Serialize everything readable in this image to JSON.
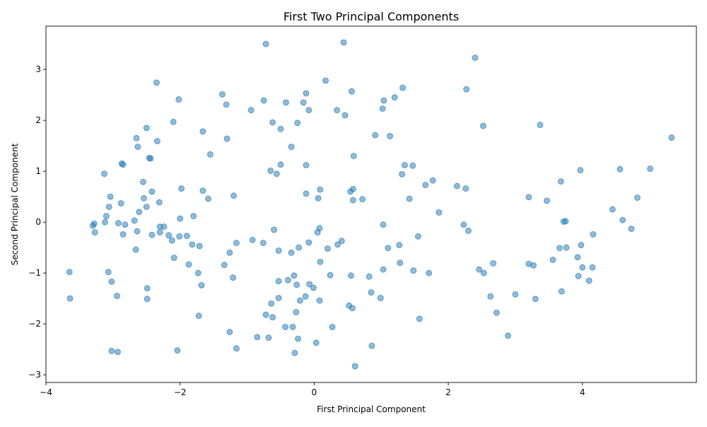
{
  "chart_data": {
    "type": "scatter",
    "title": "First Two Principal Components",
    "xlabel": "First Principal Component",
    "ylabel": "Second Principal Component",
    "xlim": [
      -4.0,
      5.7
    ],
    "ylim": [
      -3.15,
      3.85
    ],
    "xticks": [
      -4,
      -2,
      0,
      2,
      4
    ],
    "yticks": [
      -3,
      -2,
      -1,
      0,
      1,
      2,
      3
    ],
    "xtick_labels": [
      "−4",
      "−2",
      "0",
      "2",
      "4"
    ],
    "ytick_labels": [
      "−3",
      "−2",
      "−1",
      "0",
      "1",
      "2",
      "3"
    ],
    "grid": false,
    "legend": false,
    "marker_color": "#1f77b4",
    "marker_alpha": 0.5,
    "points": [
      [
        -3.65,
        -0.98
      ],
      [
        -3.64,
        -1.5
      ],
      [
        -3.3,
        -0.07
      ],
      [
        -3.28,
        -0.03
      ],
      [
        -3.27,
        -0.2
      ],
      [
        -3.13,
        0.95
      ],
      [
        -3.12,
        0.0
      ],
      [
        -3.1,
        0.12
      ],
      [
        -3.07,
        -0.98
      ],
      [
        -3.06,
        0.3
      ],
      [
        -3.04,
        0.5
      ],
      [
        -3.02,
        -1.17
      ],
      [
        -3.02,
        -2.53
      ],
      [
        -2.94,
        -1.45
      ],
      [
        -2.93,
        -2.55
      ],
      [
        -2.92,
        -0.02
      ],
      [
        -2.88,
        0.37
      ],
      [
        -2.87,
        1.15
      ],
      [
        -2.85,
        1.13
      ],
      [
        -2.85,
        -0.24
      ],
      [
        -2.82,
        -0.05
      ],
      [
        -2.68,
        0.03
      ],
      [
        -2.66,
        -0.54
      ],
      [
        -2.65,
        1.65
      ],
      [
        -2.64,
        -0.18
      ],
      [
        -2.63,
        1.48
      ],
      [
        -2.61,
        0.2
      ],
      [
        -2.55,
        0.79
      ],
      [
        -2.54,
        0.47
      ],
      [
        -2.5,
        1.85
      ],
      [
        -2.5,
        0.3
      ],
      [
        -2.49,
        -1.3
      ],
      [
        -2.49,
        -1.51
      ],
      [
        -2.46,
        1.26
      ],
      [
        -2.44,
        1.25
      ],
      [
        -2.42,
        0.6
      ],
      [
        -2.42,
        -0.25
      ],
      [
        -2.35,
        2.74
      ],
      [
        -2.34,
        1.59
      ],
      [
        -2.31,
        0.39
      ],
      [
        -2.3,
        -0.09
      ],
      [
        -2.3,
        -0.2
      ],
      [
        -2.24,
        -0.09
      ],
      [
        -2.17,
        -0.26
      ],
      [
        -2.12,
        -0.36
      ],
      [
        -2.1,
        1.97
      ],
      [
        -2.09,
        -0.7
      ],
      [
        -2.04,
        -2.52
      ],
      [
        -2.02,
        2.41
      ],
      [
        -2.01,
        -0.28
      ],
      [
        -2.0,
        0.07
      ],
      [
        -1.98,
        0.66
      ],
      [
        -1.9,
        -0.27
      ],
      [
        -1.87,
        -0.83
      ],
      [
        -1.82,
        -0.44
      ],
      [
        -1.8,
        0.12
      ],
      [
        -1.73,
        -1.0
      ],
      [
        -1.72,
        -1.84
      ],
      [
        -1.71,
        -0.47
      ],
      [
        -1.68,
        -1.24
      ],
      [
        -1.66,
        1.78
      ],
      [
        -1.66,
        0.62
      ],
      [
        -1.58,
        0.46
      ],
      [
        -1.55,
        1.33
      ],
      [
        -1.37,
        2.51
      ],
      [
        -1.34,
        -0.84
      ],
      [
        -1.31,
        2.31
      ],
      [
        -1.3,
        1.64
      ],
      [
        -1.26,
        -0.6
      ],
      [
        -1.26,
        -2.16
      ],
      [
        -1.21,
        -1.09
      ],
      [
        -1.2,
        0.52
      ],
      [
        -1.16,
        -0.41
      ],
      [
        -1.16,
        -2.48
      ],
      [
        -0.94,
        2.2
      ],
      [
        -0.92,
        -0.35
      ],
      [
        -0.85,
        -2.26
      ],
      [
        -0.76,
        -0.41
      ],
      [
        -0.75,
        2.39
      ],
      [
        -0.72,
        3.5
      ],
      [
        -0.72,
        -1.82
      ],
      [
        -0.68,
        -2.27
      ],
      [
        -0.65,
        1.01
      ],
      [
        -0.64,
        -1.6
      ],
      [
        -0.62,
        1.96
      ],
      [
        -0.62,
        -1.87
      ],
      [
        -0.6,
        -0.15
      ],
      [
        -0.56,
        0.95
      ],
      [
        -0.53,
        -1.16
      ],
      [
        -0.53,
        -0.56
      ],
      [
        -0.53,
        -1.49
      ],
      [
        -0.5,
        1.83
      ],
      [
        -0.5,
        1.13
      ],
      [
        -0.43,
        -2.06
      ],
      [
        -0.42,
        2.35
      ],
      [
        -0.39,
        -1.14
      ],
      [
        -0.34,
        1.48
      ],
      [
        -0.34,
        -0.6
      ],
      [
        -0.32,
        -2.06
      ],
      [
        -0.3,
        -1.05
      ],
      [
        -0.29,
        -2.57
      ],
      [
        -0.27,
        -1.77
      ],
      [
        -0.26,
        -1.23
      ],
      [
        -0.25,
        1.95
      ],
      [
        -0.24,
        -2.29
      ],
      [
        -0.23,
        -0.5
      ],
      [
        -0.21,
        -1.54
      ],
      [
        -0.16,
        2.35
      ],
      [
        -0.13,
        -1.46
      ],
      [
        -0.12,
        2.53
      ],
      [
        -0.12,
        1.12
      ],
      [
        -0.12,
        0.56
      ],
      [
        -0.08,
        2.2
      ],
      [
        -0.08,
        -0.4
      ],
      [
        -0.07,
        -1.22
      ],
      [
        -0.01,
        -1.29
      ],
      [
        0.03,
        -2.37
      ],
      [
        0.05,
        -0.2
      ],
      [
        0.06,
        0.47
      ],
      [
        0.08,
        -0.12
      ],
      [
        0.08,
        -1.54
      ],
      [
        0.09,
        -0.78
      ],
      [
        0.09,
        0.64
      ],
      [
        0.17,
        2.78
      ],
      [
        0.2,
        -0.52
      ],
      [
        0.24,
        -1.04
      ],
      [
        0.27,
        -2.06
      ],
      [
        0.34,
        2.2
      ],
      [
        0.35,
        -0.44
      ],
      [
        0.41,
        -0.37
      ],
      [
        0.44,
        3.53
      ],
      [
        0.46,
        2.1
      ],
      [
        0.52,
        -1.64
      ],
      [
        0.54,
        0.6
      ],
      [
        0.55,
        -1.05
      ],
      [
        0.56,
        2.57
      ],
      [
        0.57,
        -1.69
      ],
      [
        0.58,
        0.43
      ],
      [
        0.58,
        0.65
      ],
      [
        0.59,
        1.3
      ],
      [
        0.61,
        -2.83
      ],
      [
        0.72,
        0.45
      ],
      [
        0.82,
        -1.07
      ],
      [
        0.85,
        -1.38
      ],
      [
        0.86,
        -2.43
      ],
      [
        0.91,
        1.71
      ],
      [
        0.99,
        -1.49
      ],
      [
        1.02,
        2.23
      ],
      [
        1.03,
        -0.05
      ],
      [
        1.03,
        -0.93
      ],
      [
        1.04,
        2.39
      ],
      [
        1.1,
        -0.51
      ],
      [
        1.13,
        1.69
      ],
      [
        1.2,
        2.45
      ],
      [
        1.27,
        -0.45
      ],
      [
        1.28,
        -0.8
      ],
      [
        1.31,
        0.94
      ],
      [
        1.32,
        2.64
      ],
      [
        1.35,
        1.12
      ],
      [
        1.42,
        0.46
      ],
      [
        1.47,
        1.11
      ],
      [
        1.48,
        -0.95
      ],
      [
        1.55,
        -0.28
      ],
      [
        1.57,
        -1.9
      ],
      [
        1.66,
        0.73
      ],
      [
        1.71,
        -1.0
      ],
      [
        1.77,
        0.82
      ],
      [
        1.86,
        0.19
      ],
      [
        2.13,
        0.71
      ],
      [
        2.23,
        -0.05
      ],
      [
        2.26,
        0.66
      ],
      [
        2.27,
        2.61
      ],
      [
        2.3,
        -0.17
      ],
      [
        2.4,
        3.23
      ],
      [
        2.46,
        -0.93
      ],
      [
        2.52,
        1.89
      ],
      [
        2.53,
        -1.0
      ],
      [
        2.63,
        -1.46
      ],
      [
        2.67,
        -0.81
      ],
      [
        2.72,
        -1.78
      ],
      [
        2.89,
        -2.23
      ],
      [
        3.0,
        -1.42
      ],
      [
        3.2,
        0.49
      ],
      [
        3.2,
        -0.82
      ],
      [
        3.27,
        -0.85
      ],
      [
        3.3,
        -1.51
      ],
      [
        3.37,
        1.91
      ],
      [
        3.47,
        0.42
      ],
      [
        3.56,
        -0.74
      ],
      [
        3.66,
        -0.51
      ],
      [
        3.68,
        0.8
      ],
      [
        3.69,
        -1.36
      ],
      [
        3.72,
        0.01
      ],
      [
        3.75,
        0.02
      ],
      [
        3.76,
        -0.5
      ],
      [
        3.93,
        -0.69
      ],
      [
        3.94,
        -1.06
      ],
      [
        3.97,
        1.02
      ],
      [
        3.98,
        -0.45
      ],
      [
        4.0,
        -0.89
      ],
      [
        4.1,
        -1.15
      ],
      [
        4.15,
        -0.89
      ],
      [
        4.16,
        -0.24
      ],
      [
        4.45,
        0.25
      ],
      [
        4.56,
        1.04
      ],
      [
        4.6,
        0.04
      ],
      [
        4.73,
        -0.13
      ],
      [
        4.82,
        0.48
      ],
      [
        5.01,
        1.05
      ],
      [
        5.33,
        1.66
      ]
    ]
  }
}
